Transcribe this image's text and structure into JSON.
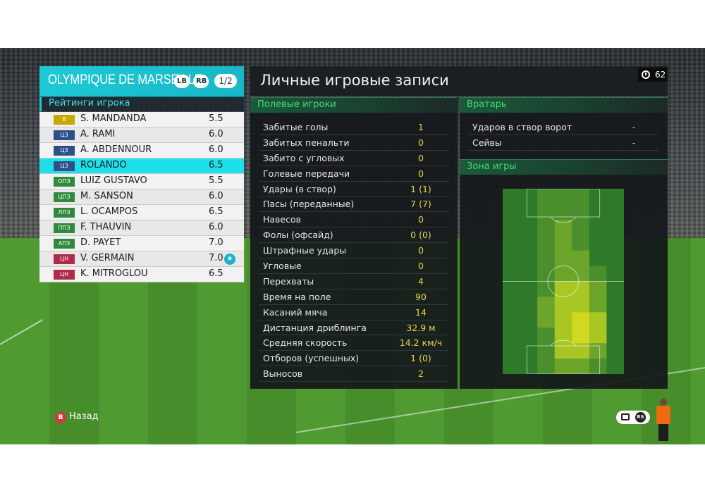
{
  "team": {
    "name": "OLYMPIQUE DE MARSEILLE",
    "lb_label": "LB",
    "rb_label": "RB",
    "page": "1/2"
  },
  "ratings_label": "Рейтинги игрока",
  "players": [
    {
      "pos": "В",
      "pos_color": "#c9a800",
      "name": "S. MANDANDA",
      "rating": "5.5",
      "star": false,
      "selected": false
    },
    {
      "pos": "ЦЗ",
      "pos_color": "#2f4f8a",
      "name": "A. RAMI",
      "rating": "6.0",
      "star": false,
      "selected": false
    },
    {
      "pos": "ЦЗ",
      "pos_color": "#2f4f8a",
      "name": "A. ABDENNOUR",
      "rating": "6.0",
      "star": false,
      "selected": false
    },
    {
      "pos": "ЦЗ",
      "pos_color": "#2f4f8a",
      "name": "ROLANDO",
      "rating": "6.5",
      "star": false,
      "selected": true
    },
    {
      "pos": "ОПЗ",
      "pos_color": "#2f8a3c",
      "name": "LUIZ GUSTAVO",
      "rating": "5.5",
      "star": false,
      "selected": false
    },
    {
      "pos": "ЦПЗ",
      "pos_color": "#2f8a3c",
      "name": "M. SANSON",
      "rating": "6.0",
      "star": false,
      "selected": false
    },
    {
      "pos": "ЛПЗ",
      "pos_color": "#2f8a3c",
      "name": "L. OCAMPOS",
      "rating": "6.5",
      "star": false,
      "selected": false
    },
    {
      "pos": "ППЗ",
      "pos_color": "#2f8a3c",
      "name": "F. THAUVIN",
      "rating": "6.0",
      "star": false,
      "selected": false
    },
    {
      "pos": "АПЗ",
      "pos_color": "#2f8a3c",
      "name": "D. PAYET",
      "rating": "7.0",
      "star": false,
      "selected": false
    },
    {
      "pos": "ЦН",
      "pos_color": "#b02a4a",
      "name": "V. GERMAIN",
      "rating": "7.0",
      "star": true,
      "selected": false
    },
    {
      "pos": "ЦН",
      "pos_color": "#b02a4a",
      "name": "K. MITROGLOU",
      "rating": "6.5",
      "star": false,
      "selected": false
    }
  ],
  "page_title": "Личные игровые записи",
  "timer": "62",
  "field_section": "Полевые игроки",
  "field_stats": [
    {
      "label": "Забитые голы",
      "value": "1"
    },
    {
      "label": "Забитых пенальти",
      "value": "0"
    },
    {
      "label": "Забито с угловых",
      "value": "0"
    },
    {
      "label": "Голевые передачи",
      "value": "0"
    },
    {
      "label": "Удары (в створ)",
      "value": "1 (1)"
    },
    {
      "label": "Пасы (переданные)",
      "value": "7 (7)"
    },
    {
      "label": "Навесов",
      "value": "0"
    },
    {
      "label": "Фолы (офсайд)",
      "value": "0 (0)"
    },
    {
      "label": "Штрафные удары",
      "value": "0"
    },
    {
      "label": "Угловые",
      "value": "0"
    },
    {
      "label": "Перехваты",
      "value": "4"
    },
    {
      "label": "Время на поле",
      "value": "90"
    },
    {
      "label": "Касаний мяча",
      "value": "14"
    },
    {
      "label": "Дистанция дриблинга",
      "value": "32.9 м"
    },
    {
      "label": "Средняя скорость",
      "value": "14.2 км/ч"
    },
    {
      "label": "Отборов (успешных)",
      "value": "1 (0)"
    },
    {
      "label": "Выносов",
      "value": "2"
    }
  ],
  "gk_section": "Вратарь",
  "gk_stats": [
    {
      "label": "Ударов в створ ворот",
      "value": "-"
    },
    {
      "label": "Сейвы",
      "value": "-"
    }
  ],
  "zone_section": "Зона игры",
  "heatmap": {
    "cols": 7,
    "rows": 12,
    "intensity": [
      [
        0,
        0,
        1,
        1,
        1,
        0,
        0
      ],
      [
        0,
        0,
        1,
        1,
        1,
        0,
        0
      ],
      [
        0,
        0,
        1,
        2,
        1,
        0,
        0
      ],
      [
        0,
        0,
        1,
        2,
        1,
        0,
        0
      ],
      [
        0,
        0,
        1,
        2,
        2,
        0,
        0
      ],
      [
        0,
        0,
        1,
        2,
        2,
        1,
        0
      ],
      [
        0,
        0,
        1,
        3,
        3,
        2,
        0
      ],
      [
        0,
        0,
        2,
        3,
        3,
        2,
        0
      ],
      [
        0,
        0,
        2,
        3,
        4,
        3,
        0
      ],
      [
        0,
        0,
        1,
        3,
        4,
        3,
        0
      ],
      [
        0,
        0,
        1,
        3,
        3,
        2,
        0
      ],
      [
        0,
        0,
        1,
        2,
        2,
        1,
        0
      ]
    ],
    "colors": [
      "#2f7a2a",
      "#4a8f2c",
      "#6da52c",
      "#a8c724",
      "#cfd91f"
    ]
  },
  "back_button_glyph": "B",
  "back_label": "Назад",
  "rs_label": "RS",
  "star_glyph": "★"
}
